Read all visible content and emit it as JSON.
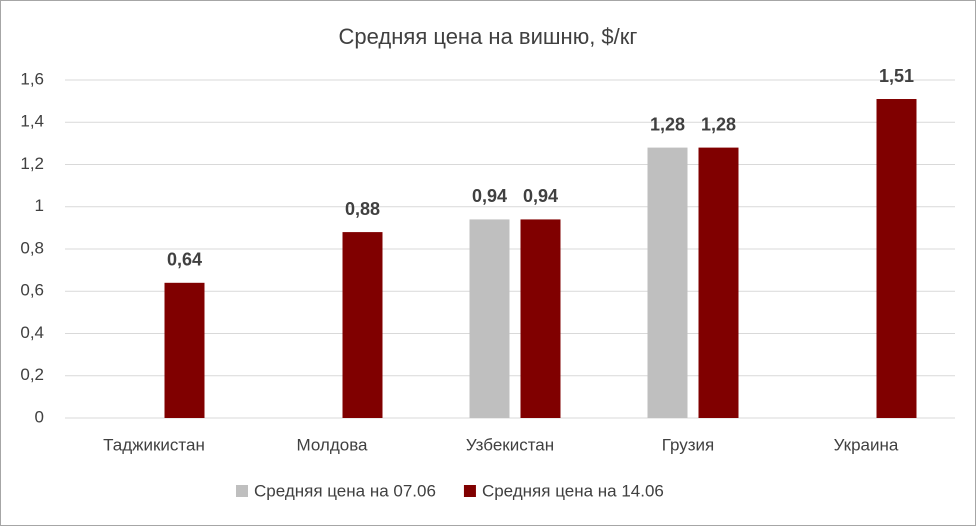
{
  "chart_data": {
    "type": "bar",
    "title": "Средняя цена на вишню, $/кг",
    "categories": [
      "Таджикистан",
      "Молдова",
      "Узбекистан",
      "Грузия",
      "Украина"
    ],
    "series": [
      {
        "name": "Средняя цена на 07.06",
        "color": "#bfbfbf",
        "values": [
          null,
          null,
          0.94,
          1.28,
          null
        ],
        "value_labels": [
          null,
          null,
          "0,94",
          "1,28",
          null
        ]
      },
      {
        "name": "Средняя цена на 14.06",
        "color": "#800000",
        "values": [
          0.64,
          0.88,
          0.94,
          1.28,
          1.51
        ],
        "value_labels": [
          "0,64",
          "0,88",
          "0,94",
          "1,28",
          "1,51"
        ]
      }
    ],
    "ylim": [
      0,
      1.6
    ],
    "yticks": [
      0,
      {
        "value": 0.2,
        "label": "0,2"
      },
      {
        "value": 0.4,
        "label": "0,4"
      },
      {
        "value": 0.6,
        "label": "0,6"
      },
      {
        "value": 0.8,
        "label": "0,8"
      },
      1,
      {
        "value": 1.2,
        "label": "1,2"
      },
      {
        "value": 1.4,
        "label": "1,4"
      },
      {
        "value": 1.6,
        "label": "1,6"
      }
    ],
    "grid": true,
    "legend": "bottom"
  }
}
